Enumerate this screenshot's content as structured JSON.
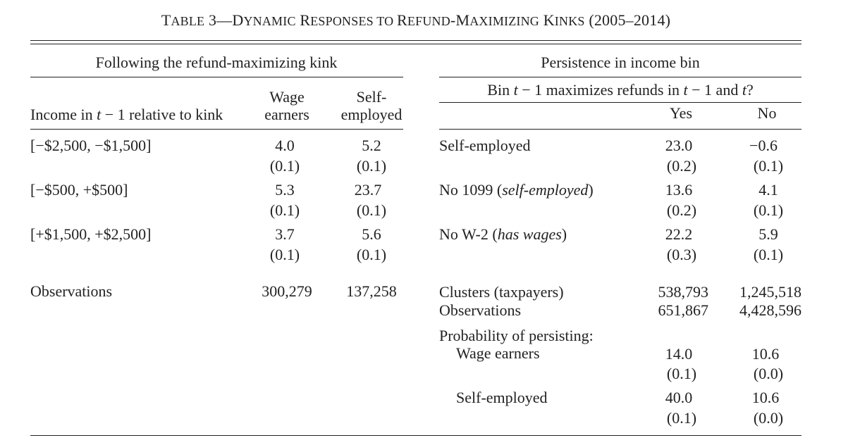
{
  "table": {
    "title": {
      "cap1": "T",
      "sc1": "ABLE",
      "num": " 3—",
      "cap2": "D",
      "sc2": "YNAMIC",
      "cap3": " R",
      "sc3": "ESPONSES",
      "sc4": " TO ",
      "cap5": "R",
      "sc5": "EFUND",
      "dash": "-",
      "cap6": "M",
      "sc6": "AXIMIZING",
      "cap7": " K",
      "sc7": "INKS",
      "years": " (2005–2014)"
    },
    "left": {
      "group_header": "Following the refund-maximizing kink",
      "row_header": {
        "a": "Income in ",
        "t": "t",
        "b": " − 1 relative to kink"
      },
      "col_wage": {
        "line1": "Wage",
        "line2": "earners"
      },
      "col_self": {
        "line1": "Self-",
        "line2": "employed"
      },
      "rows": [
        {
          "label": "[−$2,500, −$1,500]",
          "wage": "4.0",
          "wage_se": "(0.1)",
          "self": "5.2",
          "self_se": "(0.1)"
        },
        {
          "label": "[−$500, +$500]",
          "wage": "5.3",
          "wage_se": "(0.1)",
          "self": "23.7",
          "self_se": "(0.1)"
        },
        {
          "label": "[+$1,500, +$2,500]",
          "wage": "3.7",
          "wage_se": "(0.1)",
          "self": "5.6",
          "self_se": "(0.1)"
        }
      ],
      "observations": {
        "label": "Observations",
        "wage": "300,279",
        "self": "137,258"
      }
    },
    "right": {
      "group_header": "Persistence in income bin",
      "sub_header": {
        "a": "Bin ",
        "t1": "t",
        "b": " − 1 maximizes refunds in ",
        "t2": "t",
        "c": " − 1 and ",
        "t3": "t",
        "d": "?"
      },
      "col_yes": "Yes",
      "col_no": "No",
      "rows": [
        {
          "label": "Self-employed",
          "yes": "23.0",
          "yes_se": "(0.2)",
          "no": "−0.6",
          "no_se": "(0.1)"
        },
        {
          "label_a": "No 1099 (",
          "label_i": "self-employed",
          "label_b": ")",
          "yes": "13.6",
          "yes_se": "(0.2)",
          "no": "4.1",
          "no_se": "(0.1)"
        },
        {
          "label_a": "No W-2 (",
          "label_i": "has wages",
          "label_b": ")",
          "yes": "22.2",
          "yes_se": "(0.3)",
          "no": "5.9",
          "no_se": "(0.1)"
        }
      ],
      "clusters": {
        "label": "Clusters (taxpayers)",
        "yes": "538,793",
        "no": "1,245,518"
      },
      "observations": {
        "label": "Observations",
        "yes": "651,867",
        "no": "4,428,596"
      },
      "prob_header": "Probability of persisting:",
      "prob_rows": [
        {
          "label": "Wage earners",
          "yes": "14.0",
          "yes_se": "(0.1)",
          "no": "10.6",
          "no_se": "(0.0)"
        },
        {
          "label": "Self-employed",
          "yes": "40.0",
          "yes_se": "(0.1)",
          "no": "10.6",
          "no_se": "(0.0)"
        }
      ]
    }
  }
}
